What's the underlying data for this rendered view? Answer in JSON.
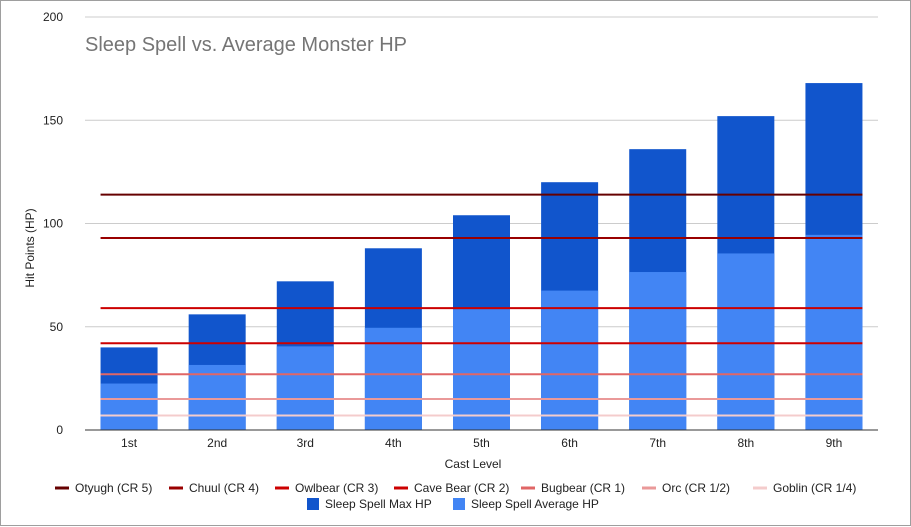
{
  "chart_data": {
    "type": "bar",
    "title": "Sleep Spell vs. Average Monster HP",
    "xlabel": "Cast Level",
    "ylabel": "Hit Points (HP)",
    "ylim": [
      0,
      200
    ],
    "yticks": [
      0,
      50,
      100,
      150,
      200
    ],
    "grid": true,
    "legend_position": "bottom",
    "categories": [
      "1st",
      "2nd",
      "3rd",
      "4th",
      "5th",
      "6th",
      "7th",
      "8th",
      "9th"
    ],
    "bar_series": [
      {
        "name": "Sleep Spell Max HP",
        "color": "#1155cc",
        "values": [
          40,
          56,
          72,
          88,
          104,
          120,
          136,
          152,
          168
        ]
      },
      {
        "name": "Sleep Spell Average HP",
        "color": "#4285f4",
        "values": [
          22.5,
          31.5,
          40.5,
          49.5,
          58.5,
          67.5,
          76.5,
          85.5,
          94.5
        ]
      }
    ],
    "line_series": [
      {
        "name": "Otyugh (CR 5)",
        "color": "#660000",
        "value": 114
      },
      {
        "name": "Chuul (CR 4)",
        "color": "#990000",
        "value": 93
      },
      {
        "name": "Owlbear (CR 3)",
        "color": "#cc0000",
        "value": 59
      },
      {
        "name": "Cave Bear (CR 2)",
        "color": "#cc0000",
        "value": 42
      },
      {
        "name": "Bugbear (CR 1)",
        "color": "#e06666",
        "value": 27
      },
      {
        "name": "Orc (CR 1/2)",
        "color": "#ea9999",
        "value": 15
      },
      {
        "name": "Goblin (CR 1/4)",
        "color": "#f4cccc",
        "value": 7
      }
    ]
  }
}
